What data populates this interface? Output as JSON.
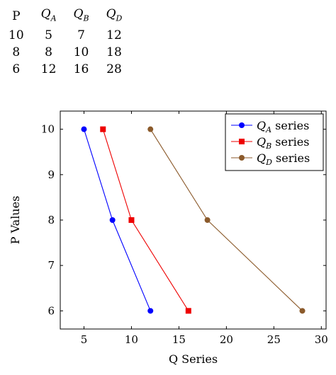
{
  "table": {
    "headers": [
      {
        "base": "P",
        "sub": ""
      },
      {
        "base": "Q",
        "sub": "A"
      },
      {
        "base": "Q",
        "sub": "B"
      },
      {
        "base": "Q",
        "sub": "D"
      }
    ],
    "rows": [
      [
        "10",
        "5",
        "7",
        "12"
      ],
      [
        "8",
        "8",
        "10",
        "18"
      ],
      [
        "6",
        "12",
        "16",
        "28"
      ]
    ]
  },
  "chart_data": {
    "type": "line",
    "xlabel": "Q Series",
    "ylabel": "P Values",
    "xlim": [
      2.5,
      30.5
    ],
    "ylim": [
      5.6,
      10.4
    ],
    "xticks": [
      5,
      10,
      15,
      20,
      25,
      30
    ],
    "yticks": [
      6,
      7,
      8,
      9,
      10
    ],
    "legend_position": "top-right",
    "series": [
      {
        "name": "Q_A series",
        "name_base": "Q",
        "name_sub": "A",
        "name_rest": " series",
        "color": "#0000ff",
        "marker": "circle",
        "points": [
          {
            "x": 5,
            "y": 10
          },
          {
            "x": 8,
            "y": 8
          },
          {
            "x": 12,
            "y": 6
          }
        ]
      },
      {
        "name": "Q_B series",
        "name_base": "Q",
        "name_sub": "B",
        "name_rest": " series",
        "color": "#ee0000",
        "marker": "square",
        "points": [
          {
            "x": 7,
            "y": 10
          },
          {
            "x": 10,
            "y": 8
          },
          {
            "x": 16,
            "y": 6
          }
        ]
      },
      {
        "name": "Q_D series",
        "name_base": "Q",
        "name_sub": "D",
        "name_rest": " series",
        "color": "#8b5a2b",
        "marker": "circle",
        "points": [
          {
            "x": 12,
            "y": 10
          },
          {
            "x": 18,
            "y": 8
          },
          {
            "x": 28,
            "y": 6
          }
        ]
      }
    ]
  }
}
